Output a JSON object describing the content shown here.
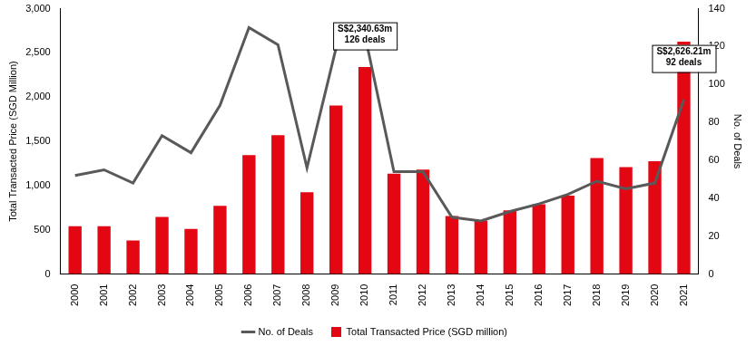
{
  "chart_data": {
    "type": "bar",
    "categories": [
      "2000",
      "2001",
      "2002",
      "2003",
      "2004",
      "2005",
      "2006",
      "2007",
      "2008",
      "2009",
      "2010",
      "2011",
      "2012",
      "2013",
      "2014",
      "2015",
      "2016",
      "2017",
      "2018",
      "2019",
      "2020",
      "2021"
    ],
    "series": [
      {
        "name": "Total Transacted Price (SGD million)",
        "type": "bar",
        "color": "#e30613",
        "values": [
          540,
          540,
          380,
          645,
          510,
          770,
          1345,
          1570,
          925,
          1905,
          2340.63,
          1135,
          1180,
          655,
          605,
          720,
          790,
          885,
          1310,
          1210,
          1275,
          2626.21
        ]
      },
      {
        "name": "No. of Deals",
        "type": "line",
        "axis": "y2",
        "color": "#595959",
        "marker": "none",
        "line_style": "solid",
        "values": [
          52,
          55,
          48,
          73,
          64,
          89,
          130,
          121,
          56,
          119,
          126,
          54,
          54,
          30,
          28,
          33,
          37,
          42,
          49,
          45,
          48,
          92
        ]
      }
    ],
    "y_label": "Total Transacted Price (SGD Million)",
    "y2_label": "No. of Deals",
    "ylim": [
      0,
      3000
    ],
    "yticks": [
      0,
      500,
      {
        "value": 1000,
        "label": "1,000"
      },
      {
        "value": 1500,
        "label": "1,500"
      },
      {
        "value": 2000,
        "label": "2,000"
      },
      {
        "value": 2500,
        "label": "2,500"
      },
      {
        "value": 3000,
        "label": "3,000"
      }
    ],
    "y2lim": [
      0,
      140
    ],
    "y2ticks": [
      0,
      20,
      40,
      60,
      80,
      100,
      120,
      140
    ],
    "grid": false,
    "legend": "bottom",
    "annotations": [
      {
        "category": "2010",
        "text": [
          "S$2,340.63m",
          "126 deals"
        ]
      },
      {
        "category": "2021",
        "text": [
          "S$2,626.21m",
          "92 deals"
        ]
      }
    ]
  }
}
